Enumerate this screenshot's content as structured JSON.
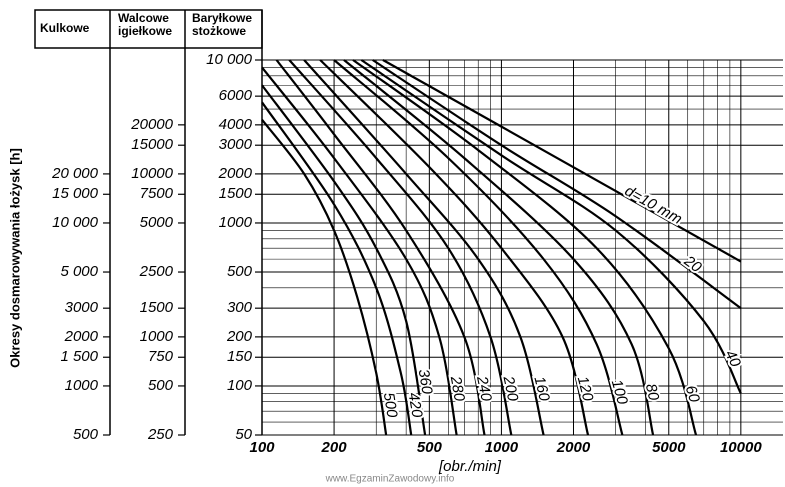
{
  "chart_data": {
    "type": "line",
    "ytitle": "Okresy dosmarowywania łożysk [h]",
    "xlabel": "[obr./min]",
    "watermark": "www.EgzaminZawodowy.info",
    "log_x": true,
    "log_y": true,
    "grid": true,
    "xlim": [
      100,
      15000
    ],
    "xticks": [
      100,
      200,
      500,
      1000,
      2000,
      5000,
      {
        "value": 10000,
        "label": "10000"
      }
    ],
    "xminorticks": [
      300,
      400,
      600,
      700,
      800,
      900,
      3000,
      4000,
      6000,
      7000,
      8000,
      9000
    ],
    "y_column_title": "Baryłkowe stożkowe",
    "ylim": [
      50,
      10000
    ],
    "yticks": [
      {
        "value": 10000,
        "label": "10 000"
      },
      6000,
      4000,
      3000,
      2000,
      1500,
      1000,
      500,
      300,
      200,
      150,
      100,
      50
    ],
    "yminorticks": [
      60,
      70,
      80,
      90,
      400,
      600,
      700,
      800,
      900,
      5000,
      7000,
      8000,
      9000
    ],
    "y_scales": [
      {
        "title": "Kulkowe",
        "ylim": [
          500,
          100000
        ],
        "ticks": [
          {
            "value": 20000,
            "label": "20 000"
          },
          {
            "value": 15000,
            "label": "15 000"
          },
          {
            "value": 10000,
            "label": "10 000"
          },
          {
            "value": 5000,
            "label": "5 000"
          },
          3000,
          2000,
          {
            "value": 1500,
            "label": "1 500"
          },
          1000,
          500
        ]
      },
      {
        "title": "Walcowe igiełkowe",
        "ylim": [
          250,
          50000
        ],
        "ticks": [
          20000,
          15000,
          10000,
          7500,
          5000,
          2500,
          1500,
          1000,
          750,
          500,
          250
        ]
      }
    ],
    "series": [
      {
        "name": "d=10 mm",
        "color": "#000000",
        "x": [
          320,
          1000,
          10000
        ],
        "values": [
          10000,
          3900,
          580
        ]
      },
      {
        "name": "20",
        "color": "#000000",
        "x": [
          290,
          1000,
          3000,
          10000
        ],
        "values": [
          10000,
          3000,
          1100,
          300
        ]
      },
      {
        "name": "40",
        "color": "#000000",
        "x": [
          260,
          1000,
          3000,
          7000,
          10000
        ],
        "values": [
          10000,
          2600,
          900,
          250,
          90
        ]
      },
      {
        "name": "60",
        "color": "#000000",
        "x": [
          240,
          800,
          2500,
          5000,
          6500
        ],
        "values": [
          10000,
          2800,
          700,
          170,
          50
        ]
      },
      {
        "name": "80",
        "color": "#000000",
        "x": [
          220,
          700,
          2000,
          3500,
          4300
        ],
        "values": [
          10000,
          2500,
          600,
          180,
          50
        ]
      },
      {
        "name": "100",
        "color": "#000000",
        "x": [
          200,
          600,
          1500,
          2500,
          3200
        ],
        "values": [
          10000,
          2500,
          600,
          180,
          50
        ]
      },
      {
        "name": "120",
        "color": "#000000",
        "x": [
          175,
          500,
          1000,
          1800,
          2300
        ],
        "values": [
          10000,
          2200,
          700,
          200,
          50
        ]
      },
      {
        "name": "160",
        "color": "#000000",
        "x": [
          150,
          400,
          800,
          1200,
          1500
        ],
        "values": [
          10000,
          2000,
          600,
          200,
          50
        ]
      },
      {
        "name": "200",
        "color": "#000000",
        "x": [
          130,
          300,
          600,
          900,
          1100
        ],
        "values": [
          10000,
          2500,
          700,
          200,
          50
        ]
      },
      {
        "name": "240",
        "color": "#000000",
        "x": [
          115,
          200,
          400,
          700,
          850
        ],
        "values": [
          10000,
          3500,
          900,
          200,
          50
        ]
      },
      {
        "name": "280",
        "color": "#000000",
        "x": [
          100,
          200,
          400,
          550,
          650
        ],
        "values": [
          9000,
          2500,
          600,
          200,
          50
        ]
      },
      {
        "name": "360",
        "color": "#000000",
        "x": [
          100,
          200,
          300,
          400,
          480
        ],
        "values": [
          7000,
          1800,
          700,
          250,
          50
        ]
      },
      {
        "name": "420",
        "color": "#000000",
        "x": [
          100,
          200,
          300,
          380,
          420
        ],
        "values": [
          5500,
          1300,
          400,
          120,
          50
        ]
      },
      {
        "name": "500",
        "color": "#000000",
        "x": [
          100,
          150,
          200,
          250,
          300,
          330
        ],
        "values": [
          4300,
          2000,
          900,
          350,
          120,
          50
        ]
      }
    ]
  }
}
